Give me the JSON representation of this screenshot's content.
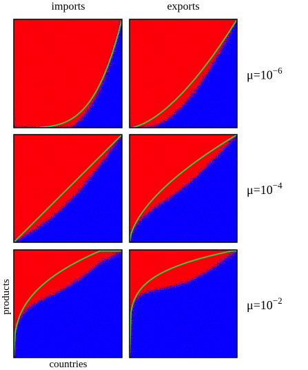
{
  "columns": [
    "imports",
    "exports"
  ],
  "rows": [
    {
      "base": "μ=10",
      "exponent": "−6"
    },
    {
      "base": "μ=10",
      "exponent": "−4"
    },
    {
      "base": "μ=10",
      "exponent": "−2"
    }
  ],
  "x_label": "countries",
  "y_label": "products"
}
